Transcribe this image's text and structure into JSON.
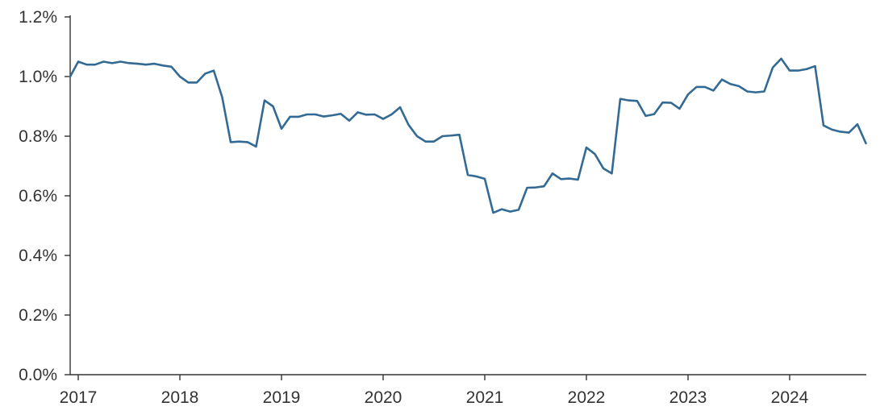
{
  "chart_data": {
    "type": "line",
    "title": "",
    "xlabel": "",
    "ylabel": "",
    "grid": false,
    "legend": "none",
    "ylim": [
      0.0,
      1.2
    ],
    "xlim": [
      "2016-12",
      "2024-10"
    ],
    "y_tick_values": [
      0.0,
      0.2,
      0.4,
      0.6,
      0.8,
      1.0,
      1.2
    ],
    "y_tick_labels": [
      "0.0%",
      "0.2%",
      "0.4%",
      "0.6%",
      "0.8%",
      "1.0%",
      "1.2%"
    ],
    "x_tick_values": [
      "2017-01",
      "2018-01",
      "2019-01",
      "2020-01",
      "2021-01",
      "2022-01",
      "2023-01",
      "2024-01"
    ],
    "x_tick_labels": [
      "2017",
      "2018",
      "2019",
      "2020",
      "2021",
      "2022",
      "2023",
      "2024"
    ],
    "series": [
      {
        "color": "#336a94",
        "points": [
          [
            "2016-12",
            1.0
          ],
          [
            "2017-01",
            1.05
          ],
          [
            "2017-02",
            1.04
          ],
          [
            "2017-03",
            1.04
          ],
          [
            "2017-04",
            1.05
          ],
          [
            "2017-05",
            1.045
          ],
          [
            "2017-06",
            1.05
          ],
          [
            "2017-07",
            1.045
          ],
          [
            "2017-08",
            1.043
          ],
          [
            "2017-09",
            1.04
          ],
          [
            "2017-10",
            1.043
          ],
          [
            "2017-11",
            1.037
          ],
          [
            "2017-12",
            1.033
          ],
          [
            "2018-01",
            1.0
          ],
          [
            "2018-02",
            0.98
          ],
          [
            "2018-03",
            0.98
          ],
          [
            "2018-04",
            1.01
          ],
          [
            "2018-05",
            1.02
          ],
          [
            "2018-06",
            0.93
          ],
          [
            "2018-07",
            0.78
          ],
          [
            "2018-08",
            0.782
          ],
          [
            "2018-09",
            0.78
          ],
          [
            "2018-10",
            0.765
          ],
          [
            "2018-11",
            0.92
          ],
          [
            "2018-12",
            0.9
          ],
          [
            "2019-01",
            0.825
          ],
          [
            "2019-02",
            0.865
          ],
          [
            "2019-03",
            0.865
          ],
          [
            "2019-04",
            0.873
          ],
          [
            "2019-05",
            0.873
          ],
          [
            "2019-06",
            0.866
          ],
          [
            "2019-07",
            0.87
          ],
          [
            "2019-08",
            0.875
          ],
          [
            "2019-09",
            0.852
          ],
          [
            "2019-10",
            0.88
          ],
          [
            "2019-11",
            0.872
          ],
          [
            "2019-12",
            0.873
          ],
          [
            "2020-01",
            0.858
          ],
          [
            "2020-02",
            0.873
          ],
          [
            "2020-03",
            0.897
          ],
          [
            "2020-04",
            0.838
          ],
          [
            "2020-05",
            0.8
          ],
          [
            "2020-06",
            0.782
          ],
          [
            "2020-07",
            0.782
          ],
          [
            "2020-08",
            0.8
          ],
          [
            "2020-09",
            0.802
          ],
          [
            "2020-10",
            0.805
          ],
          [
            "2020-11",
            0.67
          ],
          [
            "2020-12",
            0.665
          ],
          [
            "2021-01",
            0.657
          ],
          [
            "2021-02",
            0.543
          ],
          [
            "2021-03",
            0.555
          ],
          [
            "2021-04",
            0.547
          ],
          [
            "2021-05",
            0.553
          ],
          [
            "2021-06",
            0.627
          ],
          [
            "2021-07",
            0.628
          ],
          [
            "2021-08",
            0.632
          ],
          [
            "2021-09",
            0.675
          ],
          [
            "2021-10",
            0.656
          ],
          [
            "2021-11",
            0.658
          ],
          [
            "2021-12",
            0.654
          ],
          [
            "2022-01",
            0.762
          ],
          [
            "2022-02",
            0.74
          ],
          [
            "2022-03",
            0.692
          ],
          [
            "2022-04",
            0.675
          ],
          [
            "2022-05",
            0.925
          ],
          [
            "2022-06",
            0.92
          ],
          [
            "2022-07",
            0.918
          ],
          [
            "2022-08",
            0.868
          ],
          [
            "2022-09",
            0.874
          ],
          [
            "2022-10",
            0.913
          ],
          [
            "2022-11",
            0.912
          ],
          [
            "2022-12",
            0.892
          ],
          [
            "2023-01",
            0.94
          ],
          [
            "2023-02",
            0.965
          ],
          [
            "2023-03",
            0.965
          ],
          [
            "2023-04",
            0.953
          ],
          [
            "2023-05",
            0.99
          ],
          [
            "2023-06",
            0.975
          ],
          [
            "2023-07",
            0.968
          ],
          [
            "2023-08",
            0.95
          ],
          [
            "2023-09",
            0.947
          ],
          [
            "2023-10",
            0.95
          ],
          [
            "2023-11",
            1.03
          ],
          [
            "2023-12",
            1.06
          ],
          [
            "2024-01",
            1.02
          ],
          [
            "2024-02",
            1.02
          ],
          [
            "2024-03",
            1.025
          ],
          [
            "2024-04",
            1.035
          ],
          [
            "2024-05",
            0.836
          ],
          [
            "2024-06",
            0.822
          ],
          [
            "2024-07",
            0.815
          ],
          [
            "2024-08",
            0.812
          ],
          [
            "2024-09",
            0.84
          ],
          [
            "2024-10",
            0.776
          ]
        ]
      }
    ]
  }
}
